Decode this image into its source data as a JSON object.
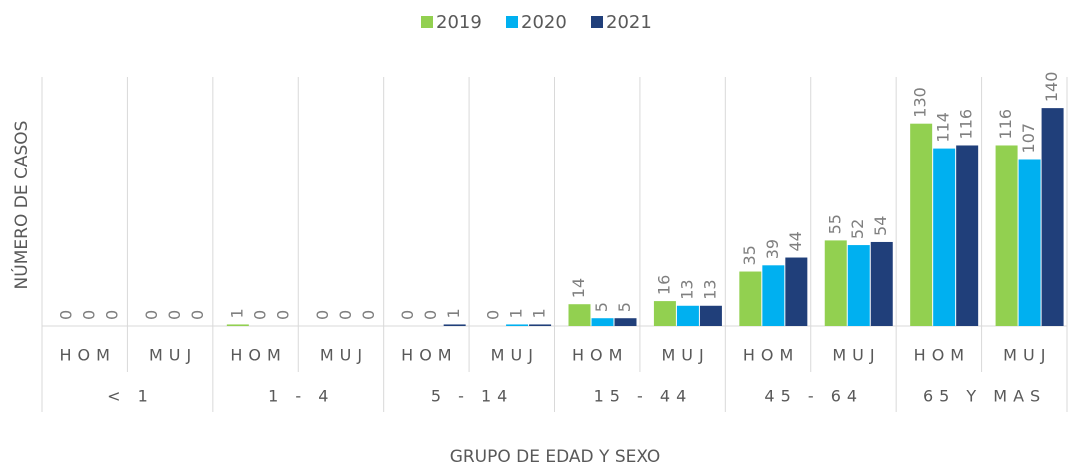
{
  "chart_data": {
    "type": "bar",
    "x_label": "GRUPO DE EDAD Y SEXO",
    "y_label": "NÚMERO DE CASOS",
    "categories": [
      "HOM",
      "MUJ",
      "HOM",
      "MUJ",
      "HOM",
      "MUJ",
      "HOM",
      "MUJ",
      "HOM",
      "MUJ",
      "HOM",
      "MUJ"
    ],
    "groups": [
      "< 1",
      "1 - 4",
      "5 - 14",
      "15 - 44",
      "45 - 64",
      "65 Y MAS"
    ],
    "series": [
      {
        "name": "2019",
        "color": "#92d050",
        "values": [
          0,
          0,
          1,
          0,
          0,
          0,
          14,
          16,
          35,
          55,
          130,
          116
        ]
      },
      {
        "name": "2020",
        "color": "#00b0f0",
        "values": [
          0,
          0,
          0,
          0,
          0,
          1,
          5,
          13,
          39,
          52,
          114,
          107
        ]
      },
      {
        "name": "2021",
        "color": "#203f7a",
        "values": [
          0,
          0,
          0,
          0,
          1,
          1,
          5,
          13,
          44,
          54,
          116,
          140
        ]
      }
    ],
    "ylim": [
      0,
      160
    ],
    "legend": "top"
  }
}
